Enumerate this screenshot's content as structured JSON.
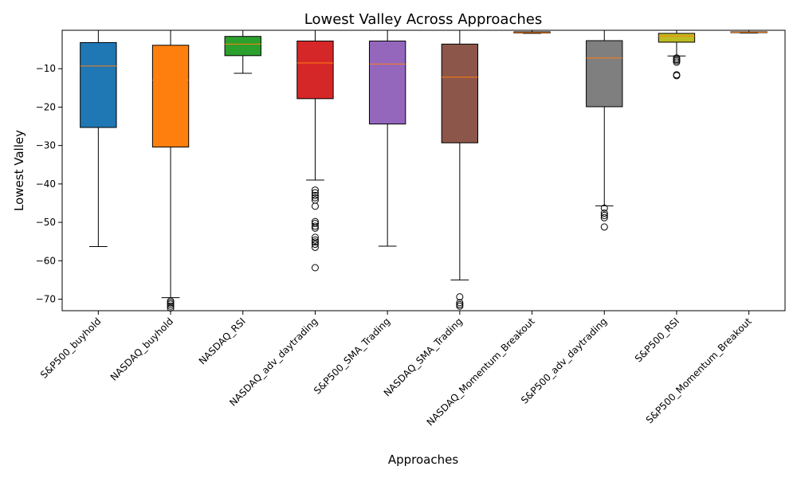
{
  "chart_data": {
    "type": "box",
    "title": "Lowest Valley Across Approaches",
    "xlabel": "Approaches",
    "ylabel": "Lowest Valley",
    "ylim": [
      -73,
      0
    ],
    "yticks": [
      -70,
      -60,
      -50,
      -40,
      -30,
      -20,
      -10
    ],
    "grid": false,
    "median_color": "#ff7f0e",
    "boxes": [
      {
        "name": "S&P500_buyhold",
        "color": "#1f77b4",
        "whisker_low": -56.3,
        "q1": -25.3,
        "median": -9.3,
        "q3": -3.2,
        "whisker_high": 0,
        "outliers": []
      },
      {
        "name": "NASDAQ_buyhold",
        "color": "#ff7f0e",
        "whisker_low": -69.6,
        "q1": -30.4,
        "median": -13.0,
        "q3": -3.9,
        "whisker_high": 0,
        "outliers": [
          -70.5,
          -70.9,
          -71.3,
          -71.8,
          -72.3
        ]
      },
      {
        "name": "NASDAQ_RSI",
        "color": "#2ca02c",
        "whisker_low": -11.2,
        "q1": -6.6,
        "median": -3.6,
        "q3": -1.6,
        "whisker_high": 0,
        "outliers": []
      },
      {
        "name": "NASDAQ_adv_daytrading",
        "color": "#d62728",
        "whisker_low": -39.0,
        "q1": -17.8,
        "median": -8.5,
        "q3": -2.8,
        "whisker_high": 0,
        "outliers": [
          -41.6,
          -42.3,
          -43.0,
          -43.6,
          -44.2,
          -45.8,
          -49.8,
          -50.3,
          -51.0,
          -51.5,
          -53.9,
          -54.6,
          -55.1,
          -55.7,
          -56.5,
          -61.8
        ]
      },
      {
        "name": "S&P500_SMA_Trading",
        "color": "#9467bd",
        "whisker_low": -56.2,
        "q1": -24.4,
        "median": -8.8,
        "q3": -2.8,
        "whisker_high": 0,
        "outliers": []
      },
      {
        "name": "NASDAQ_SMA_Trading",
        "color": "#8c564b",
        "whisker_low": -65.0,
        "q1": -29.3,
        "median": -12.2,
        "q3": -3.6,
        "whisker_high": 0,
        "outliers": [
          -69.4,
          -70.9,
          -71.4,
          -71.8
        ]
      },
      {
        "name": "NASDAQ_Momentum_Breakout",
        "color": "#e377c2",
        "whisker_low": -0.8,
        "q1": -0.7,
        "median": -0.6,
        "q3": -0.4,
        "whisker_high": 0,
        "outliers": []
      },
      {
        "name": "S&P500_adv_daytrading",
        "color": "#7f7f7f",
        "whisker_low": -45.7,
        "q1": -19.9,
        "median": -7.2,
        "q3": -2.7,
        "whisker_high": 0,
        "outliers": [
          -46.3,
          -47.6,
          -48.2,
          -48.8,
          -51.2
        ]
      },
      {
        "name": "S&P500_RSI",
        "color": "#bcbd22",
        "whisker_low": -6.7,
        "q1": -3.1,
        "median": -1.5,
        "q3": -0.8,
        "whisker_high": 0,
        "outliers": [
          -7.2,
          -7.6,
          -7.9,
          -8.3,
          -11.6,
          -11.8
        ]
      },
      {
        "name": "S&P500_Momentum_Breakout",
        "color": "#17becf",
        "whisker_low": -0.7,
        "q1": -0.6,
        "median": -0.5,
        "q3": -0.4,
        "whisker_high": 0,
        "outliers": []
      }
    ]
  }
}
